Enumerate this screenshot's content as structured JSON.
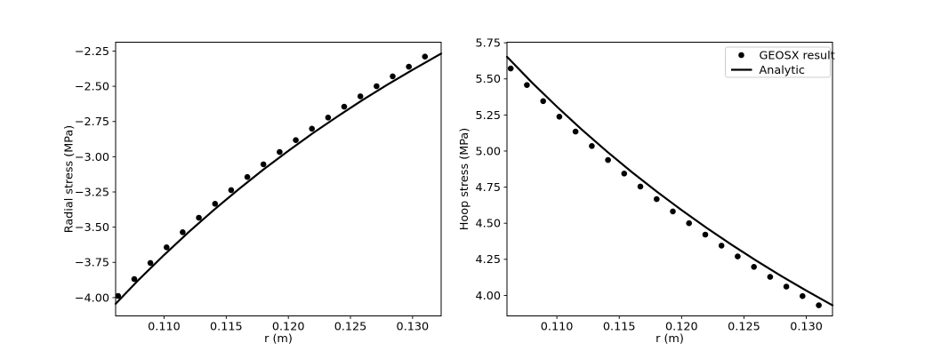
{
  "figure": {
    "background": "#ffffff",
    "foreground": "#000000"
  },
  "chart_data": [
    {
      "id": "radial-stress",
      "type": "line+scatter",
      "title": "",
      "xlabel": "r (m)",
      "ylabel": "Radial stress (MPa)",
      "xlim": [
        0.1061,
        0.1323
      ],
      "ylim": [
        -4.13,
        -2.187
      ],
      "grid": false,
      "xticks": {
        "values": [
          0.11,
          0.115,
          0.12,
          0.125,
          0.13
        ],
        "labels": [
          "0.110",
          "0.115",
          "0.120",
          "0.125",
          "0.130"
        ]
      },
      "yticks": {
        "values": [
          -4.0,
          -3.75,
          -3.5,
          -3.25,
          -3.0,
          -2.75,
          -2.5,
          -2.25
        ],
        "labels": [
          "−4.00",
          "−3.75",
          "−3.50",
          "−3.25",
          "−3.00",
          "−2.75",
          "−2.50",
          "−2.25"
        ]
      },
      "series": [
        {
          "name": "GEOSX result",
          "kind": "scatter",
          "marker": "circle",
          "color": "#000000",
          "marker_size": 6.6,
          "x": [
            0.1063,
            0.1076,
            0.1089,
            0.1102,
            0.1115,
            0.1128,
            0.1141,
            0.1154,
            0.1167,
            0.118,
            0.1193,
            0.1206,
            0.1219,
            0.1232,
            0.1245,
            0.1258,
            0.1271,
            0.1284,
            0.1297,
            0.131
          ],
          "y": [
            -3.988,
            -3.869,
            -3.754,
            -3.643,
            -3.536,
            -3.433,
            -3.334,
            -3.237,
            -3.144,
            -3.054,
            -2.967,
            -2.882,
            -2.801,
            -2.722,
            -2.645,
            -2.571,
            -2.499,
            -2.429,
            -2.361,
            -2.289
          ]
        },
        {
          "name": "Analytic",
          "kind": "line",
          "color": "#000000",
          "line_width": 2.2,
          "x": [
            0.1061,
            0.108,
            0.11,
            0.112,
            0.114,
            0.116,
            0.118,
            0.12,
            0.122,
            0.124,
            0.126,
            0.128,
            0.13,
            0.132,
            0.1323
          ],
          "y": [
            -4.044,
            -3.87,
            -3.697,
            -3.533,
            -3.378,
            -3.231,
            -3.091,
            -2.958,
            -2.831,
            -2.711,
            -2.596,
            -2.487,
            -2.383,
            -2.283,
            -2.268
          ]
        }
      ],
      "legend": {
        "visible": false
      }
    },
    {
      "id": "hoop-stress",
      "type": "line+scatter",
      "title": "",
      "xlabel": "r (m)",
      "ylabel": "Hoop stress (MPa)",
      "xlim": [
        0.106,
        0.1321
      ],
      "ylim": [
        3.858,
        5.754
      ],
      "grid": false,
      "xticks": {
        "values": [
          0.11,
          0.115,
          0.12,
          0.125,
          0.13
        ],
        "labels": [
          "0.110",
          "0.115",
          "0.120",
          "0.125",
          "0.130"
        ]
      },
      "yticks": {
        "values": [
          4.0,
          4.25,
          4.5,
          4.75,
          5.0,
          5.25,
          5.5,
          5.75
        ],
        "labels": [
          "4.00",
          "4.25",
          "4.50",
          "4.75",
          "5.00",
          "5.25",
          "5.50",
          "5.75"
        ]
      },
      "series": [
        {
          "name": "GEOSX result",
          "kind": "scatter",
          "marker": "circle",
          "color": "#000000",
          "marker_size": 6.6,
          "x": [
            0.1063,
            0.1076,
            0.1089,
            0.1102,
            0.1115,
            0.1128,
            0.1141,
            0.1154,
            0.1167,
            0.118,
            0.1193,
            0.1206,
            0.1219,
            0.1232,
            0.1245,
            0.1258,
            0.1271,
            0.1284,
            0.1297,
            0.131
          ],
          "y": [
            5.572,
            5.457,
            5.346,
            5.238,
            5.135,
            5.035,
            4.938,
            4.844,
            4.754,
            4.667,
            4.582,
            4.5,
            4.421,
            4.345,
            4.27,
            4.198,
            4.128,
            4.061,
            3.995,
            3.931
          ]
        },
        {
          "name": "Analytic",
          "kind": "line",
          "color": "#000000",
          "line_width": 2.2,
          "x": [
            0.106,
            0.108,
            0.11,
            0.112,
            0.114,
            0.116,
            0.118,
            0.12,
            0.122,
            0.124,
            0.126,
            0.128,
            0.13,
            0.132,
            0.1321
          ],
          "y": [
            5.653,
            5.475,
            5.308,
            5.149,
            4.998,
            4.855,
            4.72,
            4.591,
            4.468,
            4.352,
            4.24,
            4.134,
            4.033,
            3.936,
            3.932
          ]
        }
      ],
      "legend": {
        "visible": true,
        "position": "upper right",
        "border_color": "#cccccc",
        "background": "#ffffff"
      }
    }
  ]
}
